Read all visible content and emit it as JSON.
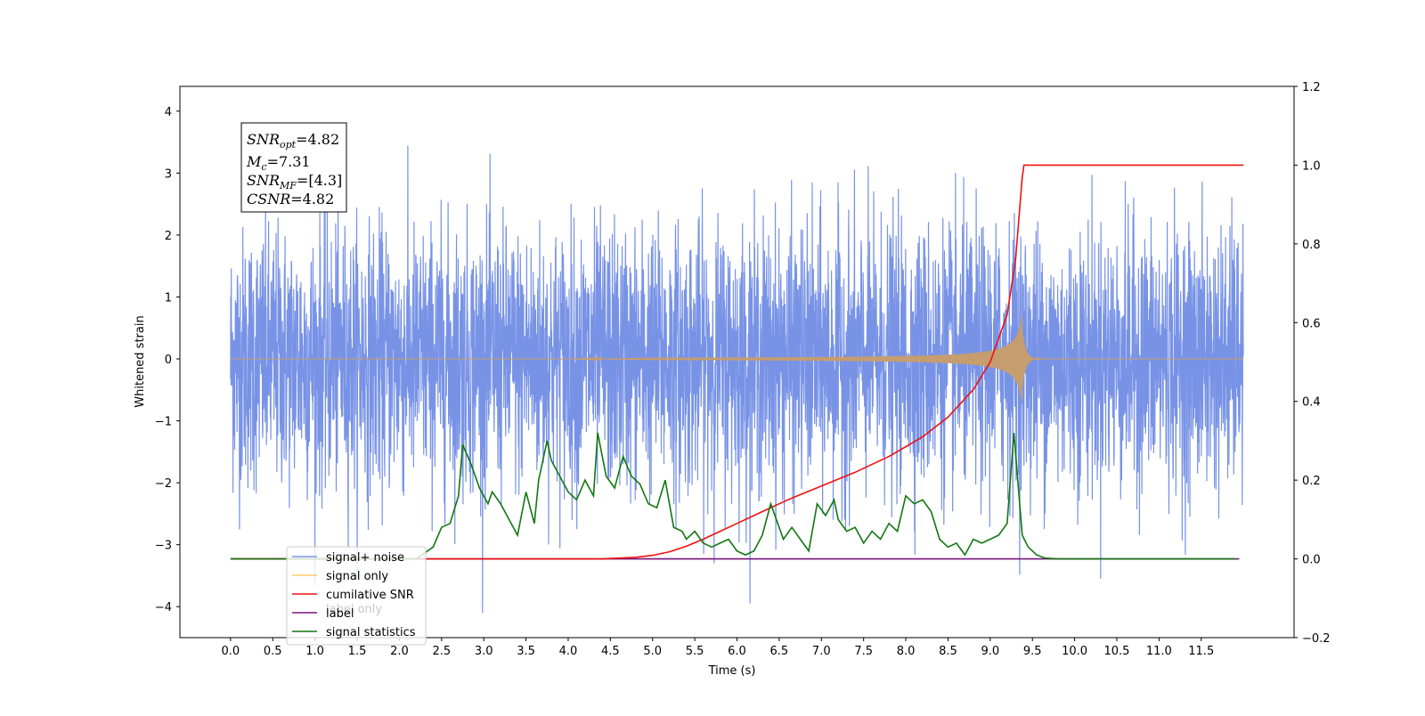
{
  "chart_data": {
    "type": "line",
    "xlabel": "Time (s)",
    "ylabel": "Whitened strain",
    "x_ticks": [
      0.0,
      0.5,
      1.0,
      1.5,
      2.0,
      2.5,
      3.0,
      3.5,
      4.0,
      4.5,
      5.0,
      5.5,
      6.0,
      6.5,
      7.0,
      7.5,
      8.0,
      8.5,
      9.0,
      9.5,
      10.0,
      10.5,
      11.0,
      11.5
    ],
    "x_tick_labels": [
      "0.0",
      "0.5",
      "1.0",
      "1.5",
      "2.0",
      "2.5",
      "3.0",
      "3.5",
      "4.0",
      "4.5",
      "5.0",
      "5.5",
      "6.0",
      "6.5",
      "7.0",
      "7.5",
      "8.0",
      "8.5",
      "9.0",
      "9.5",
      "10.0",
      "10.5",
      "11.0",
      "11.5"
    ],
    "xlim": [
      -0.6,
      12.6
    ],
    "ylim_left": [
      -4.5,
      4.4
    ],
    "y_ticks_left": [
      4,
      3,
      2,
      1,
      0,
      -1,
      -2,
      -3,
      -4
    ],
    "y_tick_labels_left": [
      "4",
      "3",
      "2",
      "1",
      "0",
      "−1",
      "−2",
      "−3",
      "−4"
    ],
    "ylim_right": [
      -0.2,
      1.2
    ],
    "y_ticks_right": [
      1.2,
      1.0,
      0.8,
      0.6,
      0.4,
      0.2,
      0.0,
      -0.2
    ],
    "y_tick_labels_right": [
      "1.2",
      "1.0",
      "0.8",
      "0.6",
      "0.4",
      "0.2",
      "0.0",
      "−0.2"
    ],
    "annotation": {
      "snr_opt": "=4.82",
      "mc": "=7.31",
      "snr_mf": "=[4.3]",
      "csnr": "=4.82"
    },
    "legend": {
      "placement": "lower-left",
      "entries": [
        "signal+ noise",
        "signal only",
        "cumilative SNR",
        "label",
        "signal statistics"
      ]
    },
    "occluded_legend_text": [
      "label only"
    ],
    "series": [
      {
        "name": "signal+ noise",
        "axis": "left",
        "color": "#7893e6",
        "description": "whitened noisy strain, std approx 1.0, spanning 0 to 12 s",
        "noise_std": 1.0,
        "x_range": [
          0,
          12
        ]
      },
      {
        "name": "signal only",
        "axis": "left",
        "color": "#c69d6f",
        "description": "chirp waveform, amplitude growing to ~0.75 at merger ~9.38 s",
        "merger_time": 9.38,
        "peak_amplitude": 0.75
      },
      {
        "name": "cumilative SNR",
        "axis": "right",
        "color": "#ee1111",
        "x": [
          0.0,
          4.4,
          4.8,
          5.0,
          5.2,
          5.4,
          5.6,
          5.8,
          6.0,
          6.3,
          6.6,
          7.0,
          7.4,
          7.8,
          8.2,
          8.5,
          8.8,
          9.0,
          9.2,
          9.3,
          9.38,
          9.4,
          12.0
        ],
        "y": [
          0.0,
          0.0,
          0.004,
          0.009,
          0.018,
          0.032,
          0.05,
          0.07,
          0.09,
          0.12,
          0.15,
          0.185,
          0.22,
          0.26,
          0.31,
          0.36,
          0.43,
          0.5,
          0.62,
          0.76,
          0.97,
          1.0,
          1.0
        ]
      },
      {
        "name": "label",
        "axis": "right",
        "color": "#7a127a",
        "x": [
          0.0,
          11.95
        ],
        "y": [
          0.0,
          0.0
        ]
      },
      {
        "name": "signal statistics",
        "axis": "right",
        "color": "#117711",
        "x": [
          0.0,
          2.2,
          2.4,
          2.5,
          2.6,
          2.7,
          2.75,
          2.85,
          2.95,
          3.05,
          3.1,
          3.2,
          3.3,
          3.4,
          3.5,
          3.6,
          3.65,
          3.75,
          3.8,
          3.9,
          4.0,
          4.1,
          4.2,
          4.3,
          4.35,
          4.45,
          4.55,
          4.65,
          4.75,
          4.85,
          4.95,
          5.05,
          5.15,
          5.25,
          5.35,
          5.4,
          5.5,
          5.6,
          5.7,
          5.8,
          5.9,
          6.0,
          6.1,
          6.2,
          6.3,
          6.4,
          6.55,
          6.65,
          6.75,
          6.85,
          6.95,
          7.05,
          7.15,
          7.2,
          7.3,
          7.4,
          7.5,
          7.6,
          7.7,
          7.8,
          7.9,
          8.0,
          8.1,
          8.2,
          8.3,
          8.4,
          8.5,
          8.6,
          8.7,
          8.8,
          8.9,
          9.0,
          9.1,
          9.2,
          9.28,
          9.38,
          9.45,
          9.55,
          9.65,
          9.8,
          10.0,
          11.9
        ],
        "y": [
          0.0,
          0.0,
          0.03,
          0.08,
          0.09,
          0.16,
          0.29,
          0.24,
          0.18,
          0.14,
          0.17,
          0.14,
          0.1,
          0.06,
          0.17,
          0.09,
          0.2,
          0.3,
          0.25,
          0.21,
          0.17,
          0.15,
          0.2,
          0.16,
          0.32,
          0.21,
          0.18,
          0.26,
          0.21,
          0.19,
          0.14,
          0.13,
          0.2,
          0.08,
          0.07,
          0.05,
          0.07,
          0.04,
          0.03,
          0.04,
          0.05,
          0.02,
          0.01,
          0.02,
          0.06,
          0.14,
          0.05,
          0.08,
          0.05,
          0.02,
          0.14,
          0.11,
          0.15,
          0.1,
          0.07,
          0.08,
          0.04,
          0.07,
          0.05,
          0.09,
          0.07,
          0.16,
          0.14,
          0.15,
          0.12,
          0.05,
          0.03,
          0.04,
          0.01,
          0.05,
          0.04,
          0.05,
          0.06,
          0.09,
          0.32,
          0.06,
          0.03,
          0.01,
          0.002,
          0.0,
          0.0,
          0.0
        ]
      }
    ]
  }
}
